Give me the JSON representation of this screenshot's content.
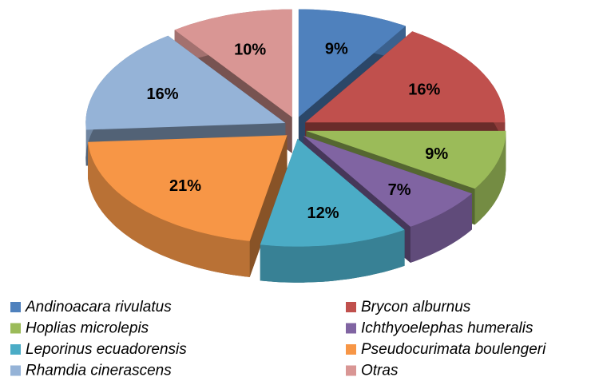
{
  "chart_data": {
    "type": "pie",
    "categories": [
      "Andinoacara rivulatus",
      "Brycon alburnus",
      "Hoplias microlepis",
      "Ichthyoelephas humeralis",
      "Leporinus ecuadorensis",
      "Pseudocurimata boulengeri",
      "Rhamdia cinerascens",
      "Otras"
    ],
    "values": [
      9,
      16,
      9,
      7,
      12,
      21,
      16,
      10
    ],
    "value_labels": [
      "9%",
      "16%",
      "9%",
      "7%",
      "12%",
      "21%",
      "16%",
      "10%"
    ],
    "colors": [
      "#4f81bd",
      "#c0504d",
      "#9bbb59",
      "#8064a2",
      "#4bacc6",
      "#f79646",
      "#95b3d7",
      "#d99694"
    ],
    "legend": "bottom"
  }
}
